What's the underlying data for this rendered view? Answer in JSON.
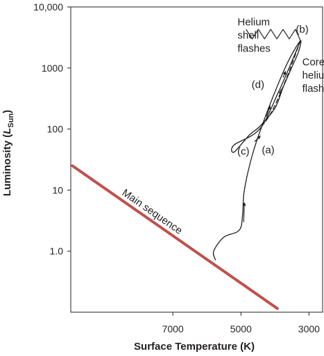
{
  "chart_data": {
    "type": "line",
    "title": "",
    "xlabel": "Surface Temperature (K)",
    "ylabel": {
      "prefix": "Luminosity (",
      "symbol": "L",
      "subscript": "Sun",
      "suffix": ")"
    },
    "x_scale": "linear-reversed",
    "xlim": [
      10000,
      2600
    ],
    "y_scale": "log",
    "ylim": [
      0.1,
      10000
    ],
    "x_ticks": [
      {
        "value": 7000,
        "label": "7000"
      },
      {
        "value": 5000,
        "label": "5000"
      },
      {
        "value": 3000,
        "label": "3000"
      }
    ],
    "y_ticks": [
      {
        "value": 1,
        "label": "1.0"
      },
      {
        "value": 10,
        "label": "10"
      },
      {
        "value": 100,
        "label": "100"
      },
      {
        "value": 1000,
        "label": "1000"
      },
      {
        "value": 10000,
        "label": "10,000"
      }
    ],
    "grid": false,
    "series": [
      {
        "name": "Main sequence",
        "color": "#c0504d",
        "points": [
          [
            9950,
            25
          ],
          [
            3930,
            0.115
          ]
        ]
      },
      {
        "name": "",
        "color": "#231f20",
        "points": [
          [
            5750,
            0.72
          ],
          [
            5800,
            1.0
          ],
          [
            5500,
            1.7
          ],
          [
            5050,
            2.2
          ],
          [
            4950,
            4.0
          ],
          [
            4900,
            10
          ],
          [
            4650,
            40
          ],
          [
            4300,
            150
          ],
          [
            3850,
            650
          ],
          [
            3550,
            1500
          ],
          [
            3250,
            2800
          ],
          [
            3300,
            1900
          ],
          [
            3450,
            1200
          ],
          [
            3750,
            500
          ],
          [
            4000,
            220
          ],
          [
            4450,
            110
          ],
          [
            4750,
            80
          ],
          [
            5200,
            42
          ],
          [
            5200,
            55
          ],
          [
            4450,
            100
          ],
          [
            3900,
            400
          ],
          [
            3500,
            1300
          ],
          [
            3250,
            2800
          ]
        ]
      },
      {
        "name": "",
        "color": "#231f20",
        "dash": true,
        "points": [
          [
            3250,
            2800
          ],
          [
            3700,
            600
          ],
          [
            4100,
            190
          ],
          [
            4450,
            100
          ]
        ]
      }
    ],
    "annotations": [
      {
        "text": "(a)",
        "x": 4200,
        "y": 40
      },
      {
        "text": "(b)",
        "x": 3200,
        "y": 3800
      },
      {
        "text": "(c)",
        "x": 4930,
        "y": 38
      },
      {
        "text": "(d)",
        "x": 4500,
        "y": 470
      },
      {
        "lines": [
          "Helium",
          "shell",
          "flashes"
        ],
        "x": 5100,
        "y": 5000
      },
      {
        "lines": [
          "Core",
          "helium",
          "flash"
        ],
        "x": 3200,
        "y": 1100
      }
    ]
  }
}
